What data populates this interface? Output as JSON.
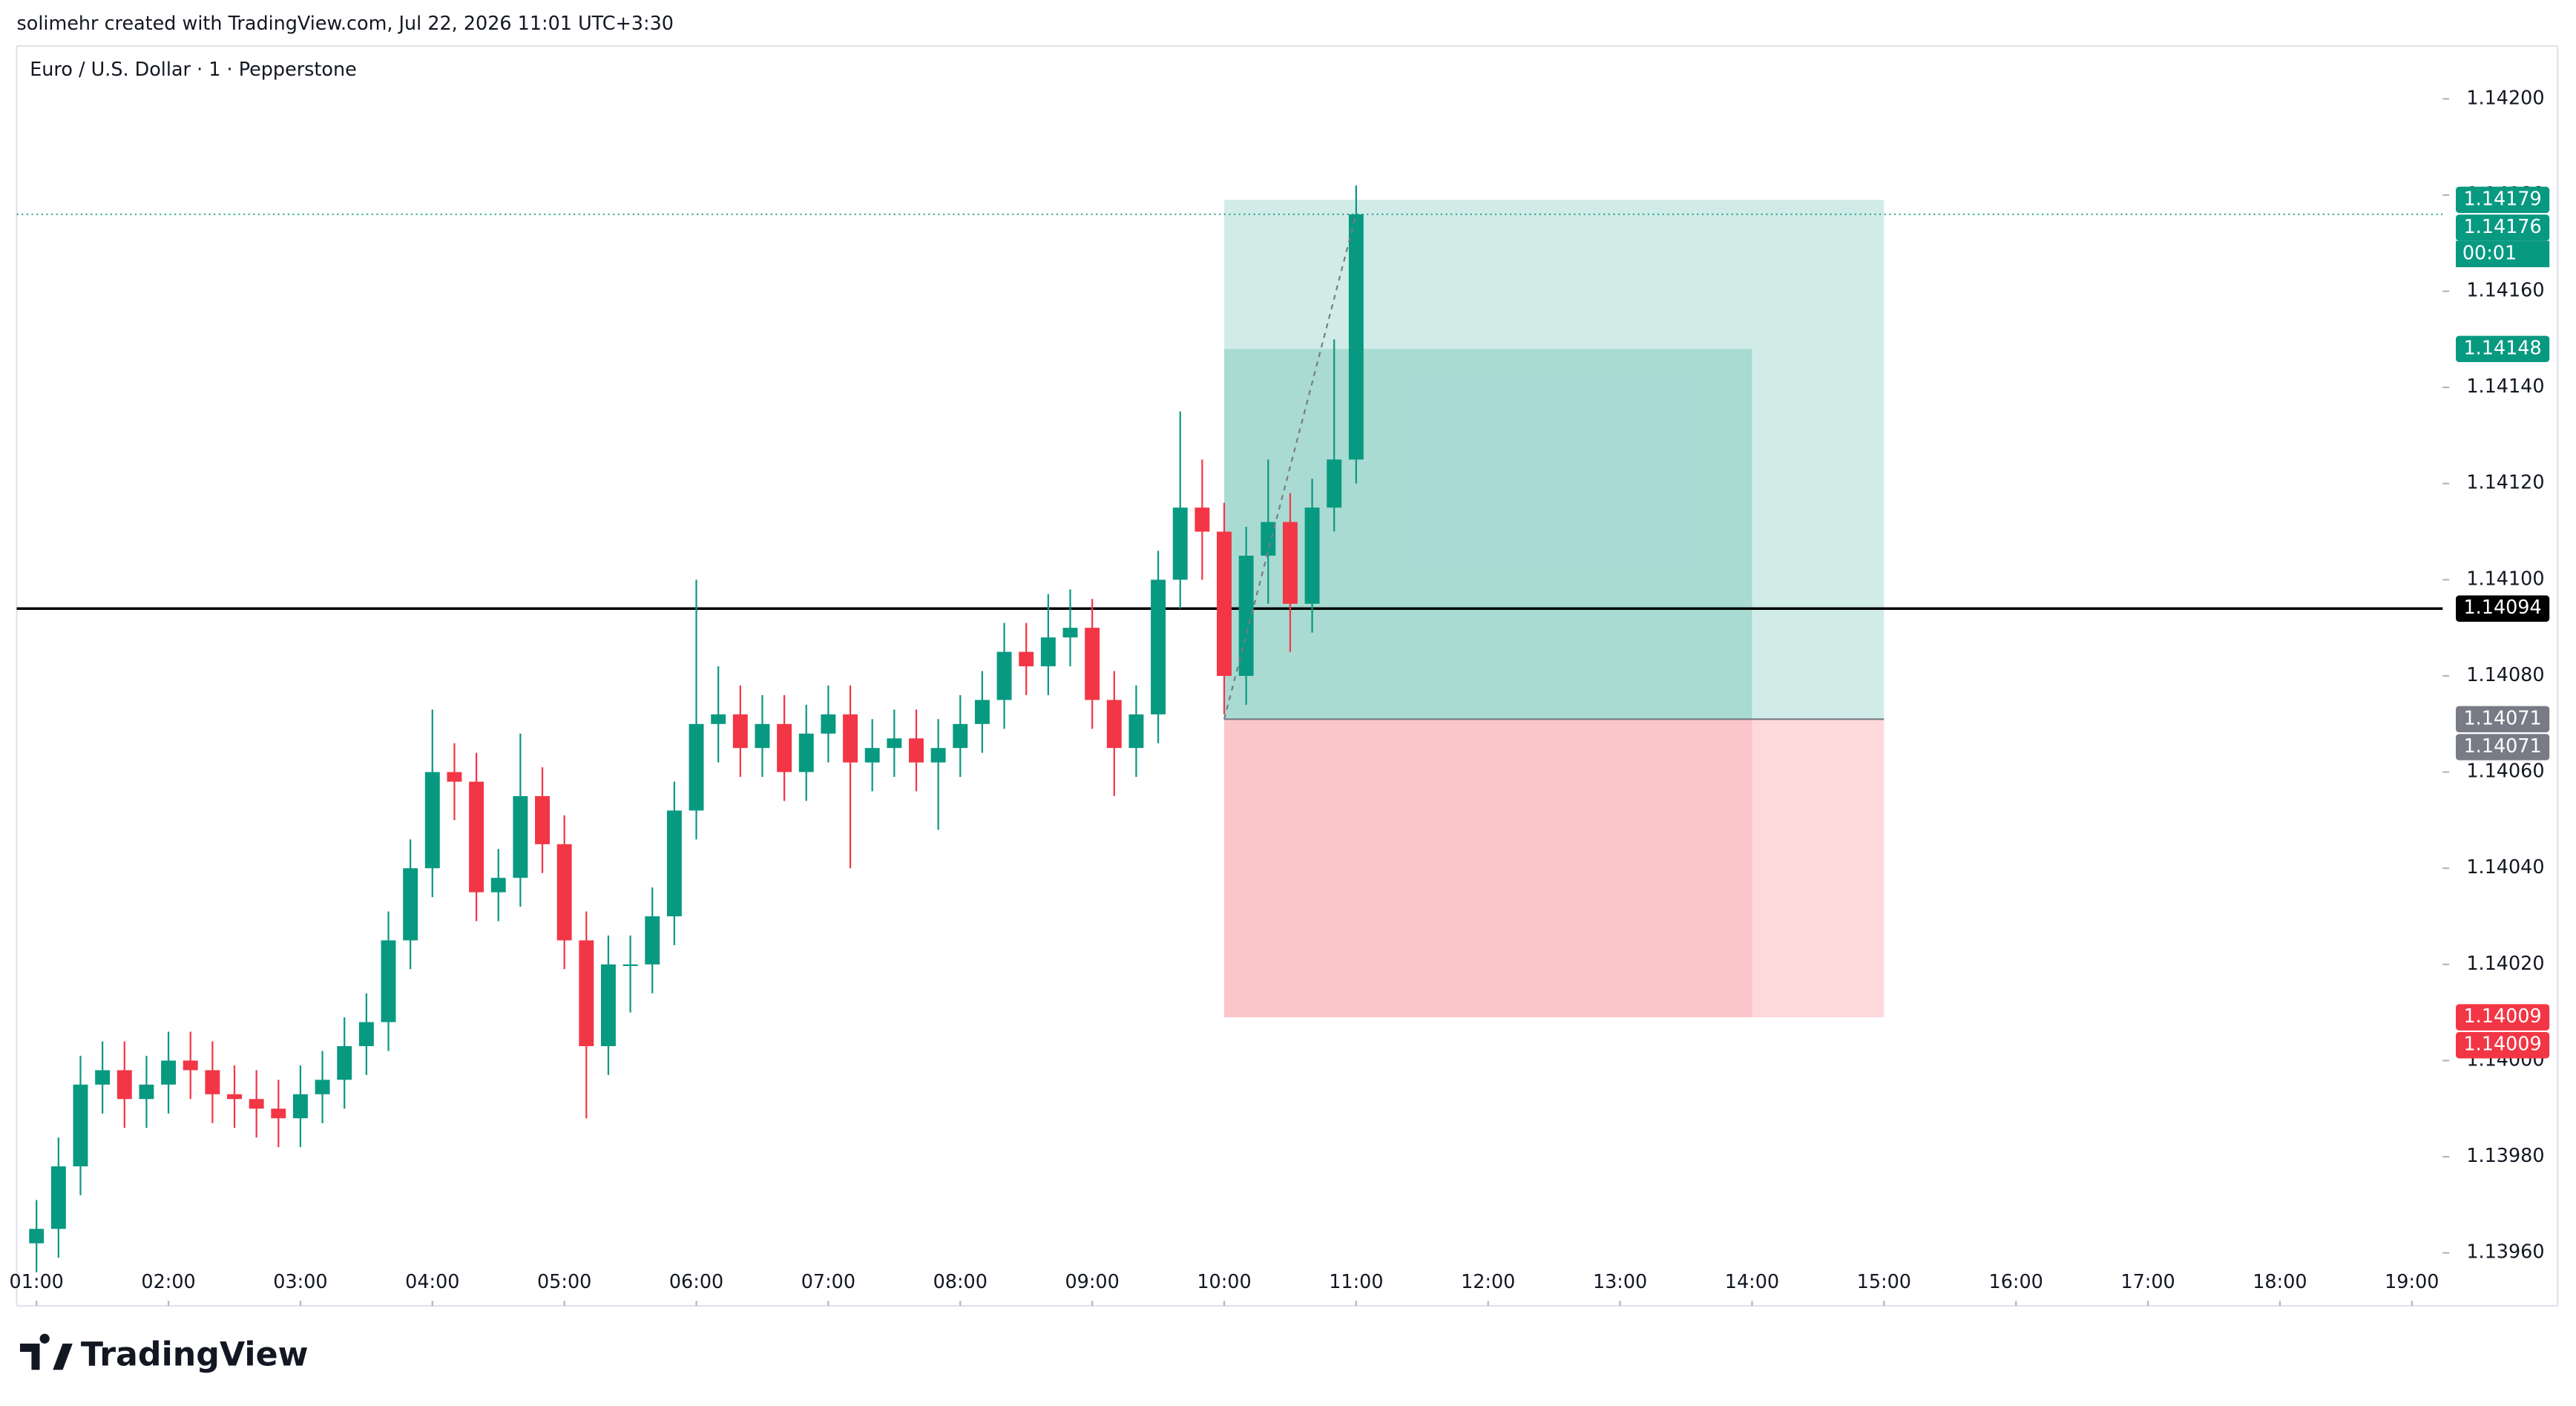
{
  "header": {
    "text": "solimehr created with TradingView.com, Jul 22, 2026 11:01 UTC+3:30"
  },
  "chart_data": {
    "type": "candlestick",
    "title": "Euro / U.S. Dollar · 1 · Pepperstone",
    "x": [
      60,
      70,
      80,
      90,
      100,
      110,
      120,
      130,
      140,
      150,
      160,
      170,
      180,
      190,
      200,
      210,
      220,
      230,
      240,
      250,
      260,
      270,
      280,
      290,
      300,
      310,
      320,
      330,
      340,
      350,
      360,
      370,
      380,
      390,
      400,
      410,
      420,
      430,
      440,
      450,
      460,
      470,
      480,
      490,
      500,
      510,
      520,
      530,
      540,
      550,
      560,
      570,
      580,
      590,
      600,
      610,
      620,
      630,
      640,
      650,
      660
    ],
    "open": [
      1.13962,
      1.13965,
      1.13978,
      1.13995,
      1.13998,
      1.13992,
      1.13995,
      1.14,
      1.13998,
      1.13993,
      1.13992,
      1.1399,
      1.13988,
      1.13993,
      1.13996,
      1.14003,
      1.14008,
      1.14025,
      1.1404,
      1.1406,
      1.14058,
      1.14035,
      1.14038,
      1.14055,
      1.14045,
      1.14025,
      1.14003,
      1.1402,
      1.1402,
      1.1403,
      1.14052,
      1.1407,
      1.14072,
      1.14065,
      1.1407,
      1.1406,
      1.14068,
      1.14072,
      1.14062,
      1.14065,
      1.14067,
      1.14062,
      1.14065,
      1.1407,
      1.14075,
      1.14085,
      1.14082,
      1.14088,
      1.1409,
      1.14075,
      1.14065,
      1.14072,
      1.141,
      1.14115,
      1.1411,
      1.1408,
      1.14105,
      1.14112,
      1.14095,
      1.14115,
      1.14125
    ],
    "high": [
      1.13971,
      1.13984,
      1.14001,
      1.14004,
      1.14004,
      1.14001,
      1.14006,
      1.14006,
      1.14004,
      1.13999,
      1.13998,
      1.13996,
      1.13999,
      1.14002,
      1.14009,
      1.14014,
      1.14031,
      1.14046,
      1.14073,
      1.14066,
      1.14064,
      1.14044,
      1.14068,
      1.14061,
      1.14051,
      1.14031,
      1.14026,
      1.14026,
      1.14036,
      1.14058,
      1.141,
      1.14082,
      1.14078,
      1.14076,
      1.14076,
      1.14074,
      1.14078,
      1.14078,
      1.14071,
      1.14073,
      1.14073,
      1.14071,
      1.14076,
      1.14081,
      1.14091,
      1.14091,
      1.14097,
      1.14098,
      1.14096,
      1.14081,
      1.14078,
      1.14106,
      1.14135,
      1.14125,
      1.14116,
      1.14111,
      1.14125,
      1.14118,
      1.14121,
      1.1415,
      1.14182
    ],
    "low": [
      1.13956,
      1.13959,
      1.13972,
      1.13989,
      1.13986,
      1.13986,
      1.13989,
      1.13992,
      1.13987,
      1.13986,
      1.13984,
      1.13982,
      1.13982,
      1.13987,
      1.1399,
      1.13997,
      1.14002,
      1.14019,
      1.14034,
      1.1405,
      1.14029,
      1.14029,
      1.14032,
      1.14039,
      1.14019,
      1.13988,
      1.13997,
      1.1401,
      1.14014,
      1.14024,
      1.14046,
      1.14062,
      1.14059,
      1.14059,
      1.14054,
      1.14054,
      1.14062,
      1.1404,
      1.14056,
      1.14059,
      1.14056,
      1.14048,
      1.14059,
      1.14064,
      1.14069,
      1.14076,
      1.14076,
      1.14082,
      1.14069,
      1.14055,
      1.14059,
      1.14066,
      1.14094,
      1.141,
      1.14072,
      1.14074,
      1.14095,
      1.14085,
      1.14089,
      1.1411,
      1.1412
    ],
    "close": [
      1.13965,
      1.13978,
      1.13995,
      1.13998,
      1.13992,
      1.13995,
      1.14,
      1.13998,
      1.13993,
      1.13992,
      1.1399,
      1.13988,
      1.13993,
      1.13996,
      1.14003,
      1.14008,
      1.14025,
      1.1404,
      1.1406,
      1.14058,
      1.14035,
      1.14038,
      1.14055,
      1.14045,
      1.14025,
      1.14003,
      1.1402,
      1.1402,
      1.1403,
      1.14052,
      1.1407,
      1.14072,
      1.14065,
      1.1407,
      1.1406,
      1.14068,
      1.14072,
      1.14062,
      1.14065,
      1.14067,
      1.14062,
      1.14065,
      1.1407,
      1.14075,
      1.14085,
      1.14082,
      1.14088,
      1.1409,
      1.14075,
      1.14065,
      1.14072,
      1.141,
      1.14115,
      1.1411,
      1.1408,
      1.14105,
      1.14112,
      1.14095,
      1.14115,
      1.14125,
      1.14176
    ],
    "up_color": "#089981",
    "down_color": "#f23645",
    "xlim": [
      51,
      1154
    ],
    "xticks": [
      {
        "value": 60,
        "label": "01:00"
      },
      {
        "value": 120,
        "label": "02:00"
      },
      {
        "value": 180,
        "label": "03:00"
      },
      {
        "value": 240,
        "label": "04:00"
      },
      {
        "value": 300,
        "label": "05:00"
      },
      {
        "value": 360,
        "label": "06:00"
      },
      {
        "value": 420,
        "label": "07:00"
      },
      {
        "value": 480,
        "label": "08:00"
      },
      {
        "value": 540,
        "label": "09:00"
      },
      {
        "value": 600,
        "label": "10:00"
      },
      {
        "value": 660,
        "label": "11:00"
      },
      {
        "value": 720,
        "label": "12:00"
      },
      {
        "value": 780,
        "label": "13:00"
      },
      {
        "value": 840,
        "label": "14:00"
      },
      {
        "value": 900,
        "label": "15:00"
      },
      {
        "value": 960,
        "label": "16:00"
      },
      {
        "value": 1020,
        "label": "17:00"
      },
      {
        "value": 1080,
        "label": "18:00"
      },
      {
        "value": 1140,
        "label": "19:00"
      }
    ],
    "ylim": [
      1.13949,
      1.14211
    ],
    "yticks": [
      {
        "value": 1.1396,
        "label": "1.13960"
      },
      {
        "value": 1.1398,
        "label": "1.13980"
      },
      {
        "value": 1.14,
        "label": "1.14000"
      },
      {
        "value": 1.1402,
        "label": "1.14020"
      },
      {
        "value": 1.1404,
        "label": "1.14040"
      },
      {
        "value": 1.1406,
        "label": "1.14060"
      },
      {
        "value": 1.1408,
        "label": "1.14080"
      },
      {
        "value": 1.141,
        "label": "1.14100"
      },
      {
        "value": 1.1412,
        "label": "1.14120"
      },
      {
        "value": 1.1414,
        "label": "1.14140"
      },
      {
        "value": 1.1416,
        "label": "1.14160"
      },
      {
        "value": 1.1418,
        "label": "1.14180"
      },
      {
        "value": 1.142,
        "label": "1.14200"
      }
    ],
    "horizontal_line": {
      "value": 1.14094,
      "color": "#000000"
    },
    "last_price": {
      "value": 1.14176,
      "color": "#089981",
      "countdown": "00:01"
    },
    "position": {
      "start": 600,
      "end": 900,
      "inner_end": 840,
      "entry": 1.14071,
      "target": 1.14179,
      "inner_target": 1.14148,
      "stop": 1.14009,
      "profit_color": "#089981",
      "loss_color": "#f23645"
    },
    "price_labels": [
      {
        "value": 1.14179,
        "color": "#089981"
      },
      {
        "value": 1.14148,
        "color": "#089981"
      },
      {
        "value": 1.14094,
        "color": "#000000"
      },
      {
        "value": 1.14071,
        "color": "#787b86"
      },
      {
        "value": 1.14071,
        "color": "#787b86"
      },
      {
        "value": 1.14009,
        "color": "#f23645"
      },
      {
        "value": 1.14009,
        "color": "#f23645"
      }
    ]
  },
  "footer": {
    "logo": "TradingView"
  }
}
